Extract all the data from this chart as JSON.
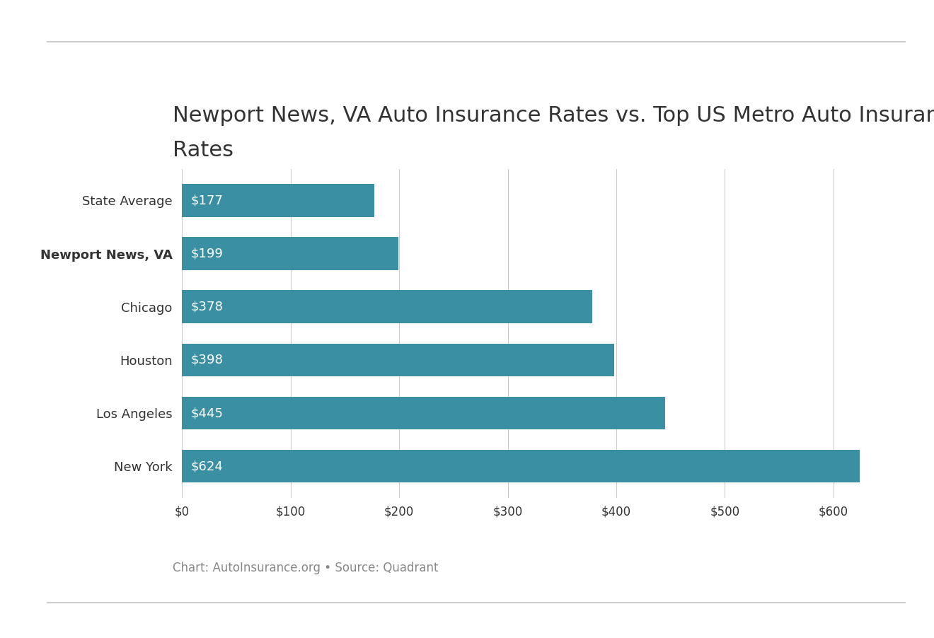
{
  "title_line1": "Newport News, VA Auto Insurance Rates vs. Top US Metro Auto Insurance",
  "title_line2": "Rates",
  "categories": [
    "State Average",
    "Newport News, VA",
    "Chicago",
    "Houston",
    "Los Angeles",
    "New York"
  ],
  "values": [
    177,
    199,
    378,
    398,
    445,
    624
  ],
  "bar_color": "#3a8fa3",
  "label_fontsize": 13,
  "bar_label_color": "#ffffff",
  "bar_label_fontsize": 13,
  "title_fontsize": 22,
  "caption": "Chart: AutoInsurance.org • Source: Quadrant",
  "caption_fontsize": 12,
  "xlim": [
    0,
    660
  ],
  "xtick_values": [
    0,
    100,
    200,
    300,
    400,
    500,
    600
  ],
  "background_color": "#ffffff",
  "bold_label": "Newport News, VA",
  "grid_color": "#cccccc",
  "line_color": "#cccccc",
  "text_color": "#333333",
  "caption_color": "#888888"
}
